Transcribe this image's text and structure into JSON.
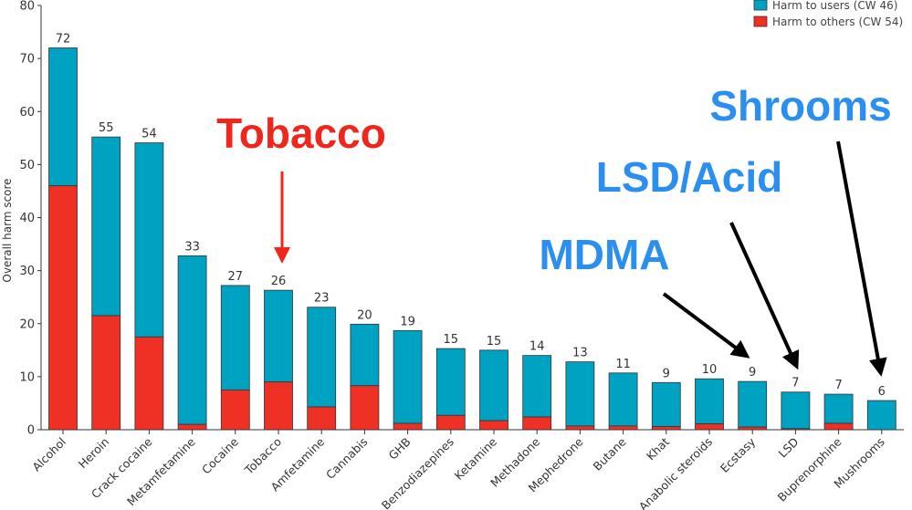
{
  "chart_data": {
    "type": "bar",
    "stacked": true,
    "ylabel": "Overall harm score",
    "ylim": [
      0,
      80
    ],
    "yticks": [
      "0",
      "10",
      "20",
      "30",
      "40",
      "50",
      "60",
      "70",
      "80"
    ],
    "categories": [
      "Alcohol",
      "Heroin",
      "Crack cocaine",
      "Metamfetamine",
      "Cocaine",
      "Tobacco",
      "Amfetamine",
      "Cannabis",
      "GHB",
      "Benzodiazepines",
      "Ketamine",
      "Methadone",
      "Mephedrone",
      "Butane",
      "Khat",
      "Anabolic steroids",
      "Ecstasy",
      "LSD",
      "Buprenorphine",
      "Mushrooms"
    ],
    "totals": [
      "72",
      "55",
      "54",
      "33",
      "27",
      "26",
      "23",
      "20",
      "19",
      "15",
      "15",
      "14",
      "13",
      "11",
      "9",
      "10",
      "9",
      "7",
      "7",
      "6"
    ],
    "series": [
      {
        "name": "Harm to others (CW 54)",
        "color": "#ee3124",
        "values": [
          46,
          21.5,
          17.5,
          1,
          7.5,
          9,
          4.3,
          8.3,
          1.2,
          2.7,
          1.7,
          2.4,
          0.7,
          0.7,
          0.6,
          1.1,
          0.5,
          0.2,
          1.2,
          0
        ]
      },
      {
        "name": "Harm to users (CW 46)",
        "color": "#00a2c2",
        "values": [
          26,
          33.7,
          36.6,
          31.8,
          19.7,
          17.3,
          18.8,
          11.6,
          17.5,
          12.6,
          13.3,
          11.6,
          12.1,
          10.0,
          8.3,
          8.5,
          8.6,
          6.9,
          5.5,
          5.5
        ]
      }
    ],
    "legend": "top-right",
    "grid": false,
    "annotations": [
      {
        "text": "Tobacco",
        "color": "#f0251b",
        "target": "Tobacco"
      },
      {
        "text": "MDMA",
        "color": "#2b8ff0",
        "target": "Ecstasy"
      },
      {
        "text": "LSD/Acid",
        "color": "#2b8ff0",
        "target": "LSD"
      },
      {
        "text": "Shrooms",
        "color": "#2b8ff0",
        "target": "Mushrooms"
      }
    ]
  }
}
